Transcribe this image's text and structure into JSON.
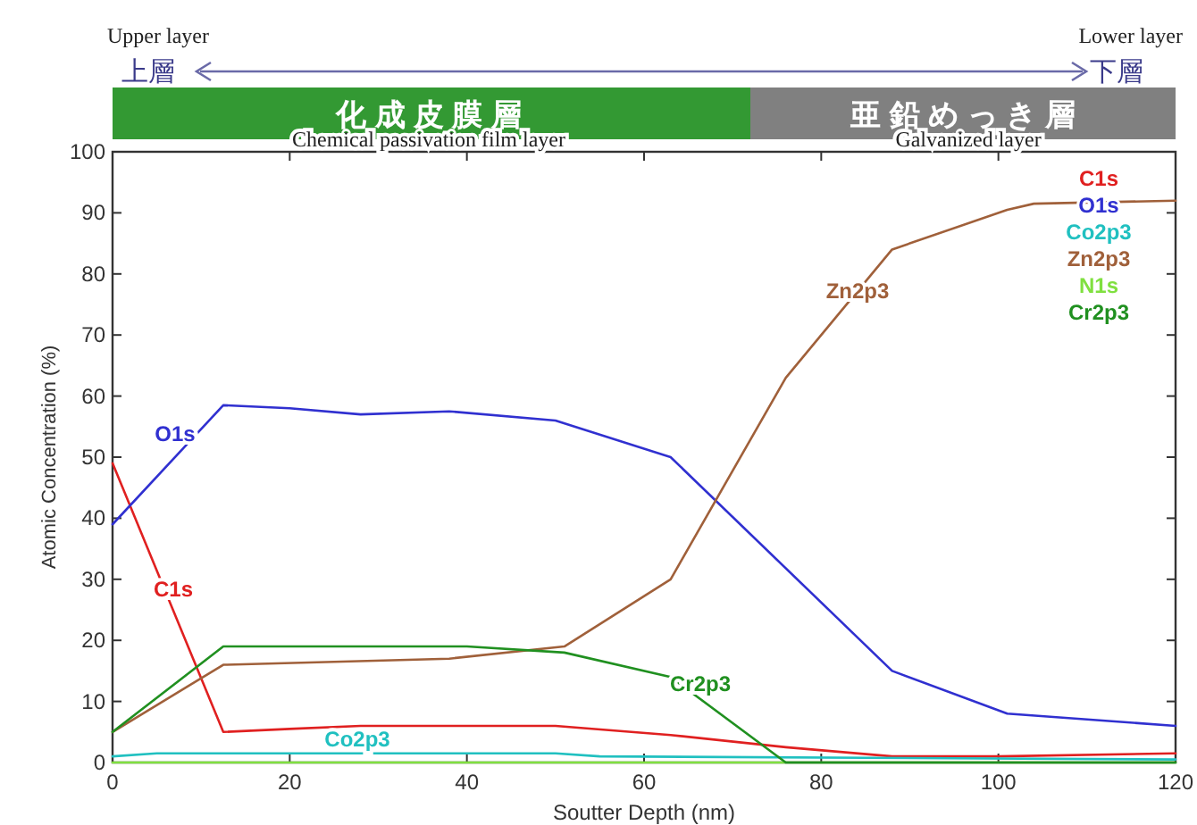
{
  "chart_data": {
    "type": "line",
    "xlabel": "Soutter Depth (nm)",
    "ylabel": "Atomic Concentration (%)",
    "xlim": [
      0,
      120
    ],
    "xticks": [
      0,
      20,
      40,
      60,
      80,
      100,
      120
    ],
    "ylim": [
      0,
      100
    ],
    "yticks": [
      0,
      10,
      20,
      30,
      40,
      50,
      60,
      70,
      80,
      90,
      100
    ],
    "grid": false,
    "legend": "top right",
    "marker": "none",
    "line_style": "solid",
    "series": [
      {
        "name": "C1s",
        "color": "#e02020",
        "x": [
          0,
          12.5,
          20,
          28,
          50,
          63,
          76,
          88,
          100,
          120
        ],
        "values": [
          49,
          5,
          5.5,
          6,
          6,
          4.5,
          2.5,
          1,
          1,
          1.5
        ]
      },
      {
        "name": "O1s",
        "color": "#3030d0",
        "x": [
          0,
          12.5,
          20,
          28,
          38,
          50,
          63,
          88,
          101,
          120
        ],
        "values": [
          39,
          58.5,
          58,
          57,
          57.5,
          56,
          50,
          15,
          8,
          6
        ]
      },
      {
        "name": "Co2p3",
        "color": "#20c0c0",
        "x": [
          0,
          5,
          50,
          55,
          120
        ],
        "values": [
          1,
          1.5,
          1.5,
          1,
          0.5
        ]
      },
      {
        "name": "Zn2p3",
        "color": "#a0603a",
        "x": [
          0,
          12.5,
          38,
          51,
          63,
          76,
          88,
          101,
          104,
          120
        ],
        "values": [
          5,
          16,
          17,
          19,
          30,
          63,
          84,
          90.5,
          91.5,
          92
        ]
      },
      {
        "name": "N1s",
        "color": "#80e040",
        "x": [
          0,
          120
        ],
        "values": [
          0,
          0
        ]
      },
      {
        "name": "Cr2p3",
        "color": "#209020",
        "x": [
          0,
          12.5,
          40,
          51,
          63,
          76,
          120
        ],
        "values": [
          5,
          19,
          19,
          18,
          14,
          0,
          0
        ]
      }
    ],
    "annotations": [
      "Upper layer",
      "上層",
      "Lower layer",
      "下層",
      "Chemical passivation film layer",
      "Galvanized layer",
      "化 成 皮 膜 層",
      "亜 鉛 め っ き 層",
      "O1s",
      "C1s",
      "Co2p3",
      "Zn2p3",
      "Cr2p3"
    ]
  }
}
